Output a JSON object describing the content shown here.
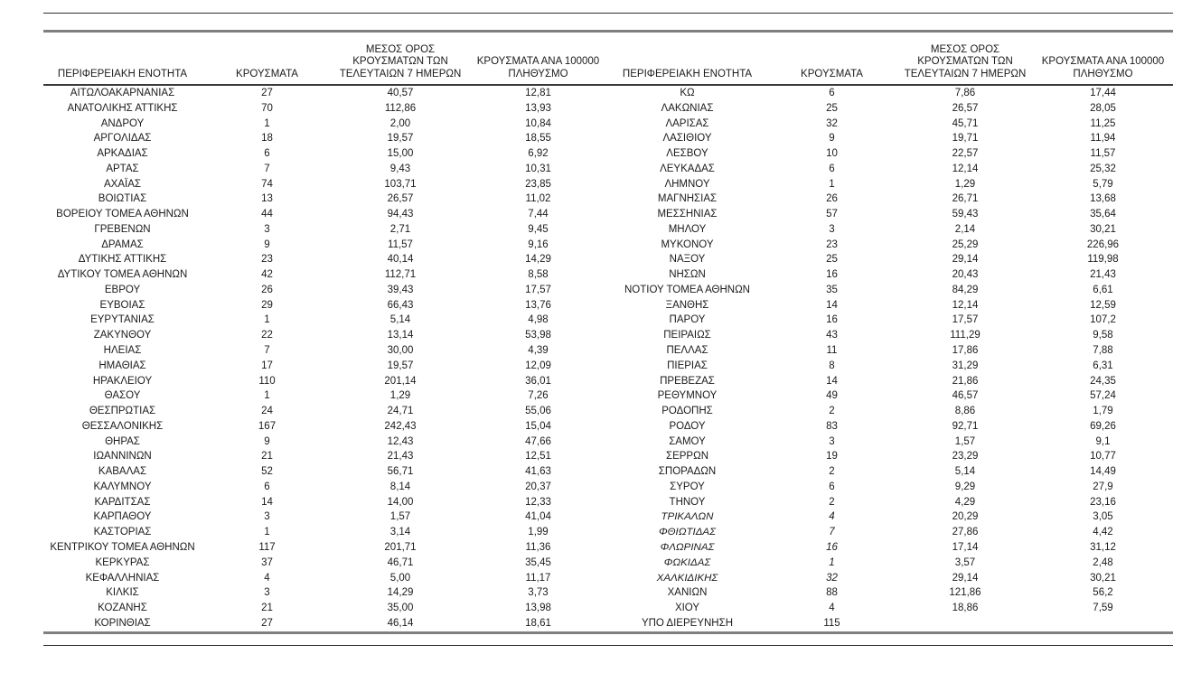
{
  "page": {
    "background": "#ffffff",
    "description_title": "Cases by regional unit table"
  },
  "style": {
    "text_color": "#1b1b1b",
    "thin_line_color": "#2e2e2e",
    "thick_line_color": "#7f7f7f",
    "header_line_color": "#3a3a3a"
  },
  "columns": {
    "region": "ΠΕΡΙΦΕΡΕΙΑΚΗ ΕΝΟΤΗΤΑ",
    "cases": "ΚΡΟΥΣΜΑΤΑ",
    "avg7": "ΜΕΣΟΣ ΟΡΟΣ ΚΡΟΥΣΜΑΤΩΝ ΤΩΝ ΤΕΛΕΥΤΑΙΩΝ 7 ΗΜΕΡΩΝ",
    "per100k": "ΚΡΟΥΣΜΑΤΑ ΑΝΑ 100000 ΠΛΗΘΥΣΜΟ"
  },
  "tables": {
    "left": {
      "rows": [
        [
          "ΑΙΤΩΛΟΑΚΑΡΝΑΝΙΑΣ",
          "27",
          "40,57",
          "12,81"
        ],
        [
          "ΑΝΑΤΟΛΙΚΗΣ ΑΤΤΙΚΗΣ",
          "70",
          "112,86",
          "13,93"
        ],
        [
          "ΑΝΔΡΟΥ",
          "1",
          "2,00",
          "10,84"
        ],
        [
          "ΑΡΓΟΛΙΔΑΣ",
          "18",
          "19,57",
          "18,55"
        ],
        [
          "ΑΡΚΑΔΙΑΣ",
          "6",
          "15,00",
          "6,92"
        ],
        [
          "ΑΡΤΑΣ",
          "7",
          "9,43",
          "10,31"
        ],
        [
          "ΑΧΑΪΑΣ",
          "74",
          "103,71",
          "23,85"
        ],
        [
          "ΒΟΙΩΤΙΑΣ",
          "13",
          "26,57",
          "11,02"
        ],
        [
          "ΒΟΡΕΙΟΥ ΤΟΜΕΑ ΑΘΗΝΩΝ",
          "44",
          "94,43",
          "7,44"
        ],
        [
          "ΓΡΕΒΕΝΩΝ",
          "3",
          "2,71",
          "9,45"
        ],
        [
          "ΔΡΑΜΑΣ",
          "9",
          "11,57",
          "9,16"
        ],
        [
          "ΔΥΤΙΚΗΣ ΑΤΤΙΚΗΣ",
          "23",
          "40,14",
          "14,29"
        ],
        [
          "ΔΥΤΙΚΟΥ ΤΟΜΕΑ ΑΘΗΝΩΝ",
          "42",
          "112,71",
          "8,58"
        ],
        [
          "ΕΒΡΟΥ",
          "26",
          "39,43",
          "17,57"
        ],
        [
          "ΕΥΒΟΙΑΣ",
          "29",
          "66,43",
          "13,76"
        ],
        [
          "ΕΥΡΥΤΑΝΙΑΣ",
          "1",
          "5,14",
          "4,98"
        ],
        [
          "ΖΑΚΥΝΘΟΥ",
          "22",
          "13,14",
          "53,98"
        ],
        [
          "ΗΛΕΙΑΣ",
          "7",
          "30,00",
          "4,39"
        ],
        [
          "ΗΜΑΘΙΑΣ",
          "17",
          "19,57",
          "12,09"
        ],
        [
          "ΗΡΑΚΛΕΙΟΥ",
          "110",
          "201,14",
          "36,01"
        ],
        [
          "ΘΑΣΟΥ",
          "1",
          "1,29",
          "7,26"
        ],
        [
          "ΘΕΣΠΡΩΤΙΑΣ",
          "24",
          "24,71",
          "55,06"
        ],
        [
          "ΘΕΣΣΑΛΟΝΙΚΗΣ",
          "167",
          "242,43",
          "15,04"
        ],
        [
          "ΘΗΡΑΣ",
          "9",
          "12,43",
          "47,66"
        ],
        [
          "ΙΩΑΝΝΙΝΩΝ",
          "21",
          "21,43",
          "12,51"
        ],
        [
          "ΚΑΒΑΛΑΣ",
          "52",
          "56,71",
          "41,63"
        ],
        [
          "ΚΑΛΥΜΝΟΥ",
          "6",
          "8,14",
          "20,37"
        ],
        [
          "ΚΑΡΔΙΤΣΑΣ",
          "14",
          "14,00",
          "12,33"
        ],
        [
          "ΚΑΡΠΑΘΟΥ",
          "3",
          "1,57",
          "41,04"
        ],
        [
          "ΚΑΣΤΟΡΙΑΣ",
          "1",
          "3,14",
          "1,99"
        ],
        [
          "ΚΕΝΤΡΙΚΟΥ ΤΟΜΕΑ ΑΘΗΝΩΝ",
          "117",
          "201,71",
          "11,36"
        ],
        [
          "ΚΕΡΚΥΡΑΣ",
          "37",
          "46,71",
          "35,45"
        ],
        [
          "ΚΕΦΑΛΛΗΝΙΑΣ",
          "4",
          "5,00",
          "11,17"
        ],
        [
          "ΚΙΛΚΙΣ",
          "3",
          "14,29",
          "3,73"
        ],
        [
          "ΚΟΖΑΝΗΣ",
          "21",
          "35,00",
          "13,98"
        ],
        [
          "ΚΟΡΙΝΘΙΑΣ",
          "27",
          "46,14",
          "18,61"
        ]
      ],
      "italic_regions": []
    },
    "right": {
      "rows": [
        [
          "ΚΩ",
          "6",
          "7,86",
          "17,44"
        ],
        [
          "ΛΑΚΩΝΙΑΣ",
          "25",
          "26,57",
          "28,05"
        ],
        [
          "ΛΑΡΙΣΑΣ",
          "32",
          "45,71",
          "11,25"
        ],
        [
          "ΛΑΣΙΘΙΟΥ",
          "9",
          "19,71",
          "11,94"
        ],
        [
          "ΛΕΣΒΟΥ",
          "10",
          "22,57",
          "11,57"
        ],
        [
          "ΛΕΥΚΑΔΑΣ",
          "6",
          "12,14",
          "25,32"
        ],
        [
          "ΛΗΜΝΟΥ",
          "1",
          "1,29",
          "5,79"
        ],
        [
          "ΜΑΓΝΗΣΙΑΣ",
          "26",
          "26,71",
          "13,68"
        ],
        [
          "ΜΕΣΣΗΝΙΑΣ",
          "57",
          "59,43",
          "35,64"
        ],
        [
          "ΜΗΛΟΥ",
          "3",
          "2,14",
          "30,21"
        ],
        [
          "ΜΥΚΟΝΟΥ",
          "23",
          "25,29",
          "226,96"
        ],
        [
          "ΝΑΞΟΥ",
          "25",
          "29,14",
          "119,98"
        ],
        [
          "ΝΗΣΩΝ",
          "16",
          "20,43",
          "21,43"
        ],
        [
          "ΝΟΤΙΟΥ ΤΟΜΕΑ ΑΘΗΝΩΝ",
          "35",
          "84,29",
          "6,61"
        ],
        [
          "ΞΑΝΘΗΣ",
          "14",
          "12,14",
          "12,59"
        ],
        [
          "ΠΑΡΟΥ",
          "16",
          "17,57",
          "107,2"
        ],
        [
          "ΠΕΙΡΑΙΩΣ",
          "43",
          "111,29",
          "9,58"
        ],
        [
          "ΠΕΛΛΑΣ",
          "11",
          "17,86",
          "7,88"
        ],
        [
          "ΠΙΕΡΙΑΣ",
          "8",
          "31,29",
          "6,31"
        ],
        [
          "ΠΡΕΒΕΖΑΣ",
          "14",
          "21,86",
          "24,35"
        ],
        [
          "ΡΕΘΥΜΝΟΥ",
          "49",
          "46,57",
          "57,24"
        ],
        [
          "ΡΟΔΟΠΗΣ",
          "2",
          "8,86",
          "1,79"
        ],
        [
          "ΡΟΔΟΥ",
          "83",
          "92,71",
          "69,26"
        ],
        [
          "ΣΑΜΟΥ",
          "3",
          "1,57",
          "9,1"
        ],
        [
          "ΣΕΡΡΩΝ",
          "19",
          "23,29",
          "10,77"
        ],
        [
          "ΣΠΟΡΑΔΩΝ",
          "2",
          "5,14",
          "14,49"
        ],
        [
          "ΣΥΡΟΥ",
          "6",
          "9,29",
          "27,9"
        ],
        [
          "ΤΗΝΟΥ",
          "2",
          "4,29",
          "23,16"
        ],
        [
          "ΤΡΙΚΑΛΩΝ",
          "4",
          "20,29",
          "3,05"
        ],
        [
          "ΦΘΙΩΤΙΔΑΣ",
          "7",
          "27,86",
          "4,42"
        ],
        [
          "ΦΛΩΡΙΝΑΣ",
          "16",
          "17,14",
          "31,12"
        ],
        [
          "ΦΩΚΙΔΑΣ",
          "1",
          "3,57",
          "2,48"
        ],
        [
          "ΧΑΛΚΙΔΙΚΗΣ",
          "32",
          "29,14",
          "30,21"
        ],
        [
          "ΧΑΝΙΩΝ",
          "88",
          "121,86",
          "56,2"
        ],
        [
          "ΧΙΟΥ",
          "4",
          "18,86",
          "7,59"
        ],
        [
          "ΥΠΟ ΔΙΕΡΕΥΝΗΣΗ",
          "115",
          "",
          ""
        ]
      ],
      "italic_regions": [
        "ΤΡΙΚΑΛΩΝ",
        "ΦΘΙΩΤΙΔΑΣ",
        "ΦΛΩΡΙΝΑΣ",
        "ΦΩΚΙΔΑΣ",
        "ΧΑΛΚΙΔΙΚΗΣ"
      ]
    }
  }
}
